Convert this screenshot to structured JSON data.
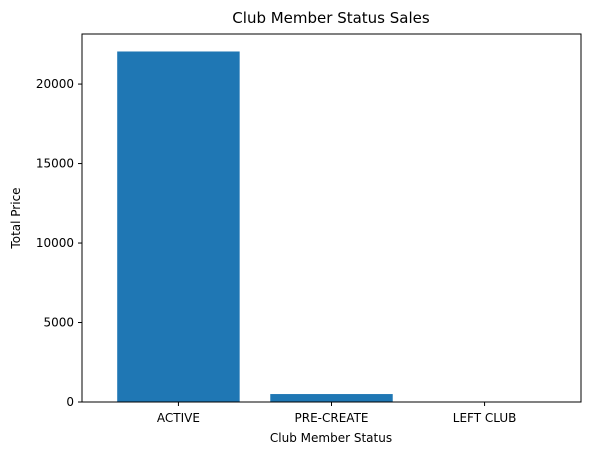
{
  "chart_data": {
    "type": "bar",
    "title": "Club Member Status Sales",
    "xlabel": "Club Member Status",
    "ylabel": "Total Price",
    "categories": [
      "ACTIVE",
      "PRE-CREATE",
      "LEFT CLUB"
    ],
    "values": [
      22050,
      500,
      0
    ],
    "ylim": [
      0,
      23150
    ],
    "yticks": [
      0,
      5000,
      10000,
      15000,
      20000
    ],
    "ytick_labels": [
      "0",
      "5000",
      "10000",
      "15000",
      "20000"
    ],
    "grid": false,
    "legend": "none",
    "bar_color": "#1f77b4"
  }
}
